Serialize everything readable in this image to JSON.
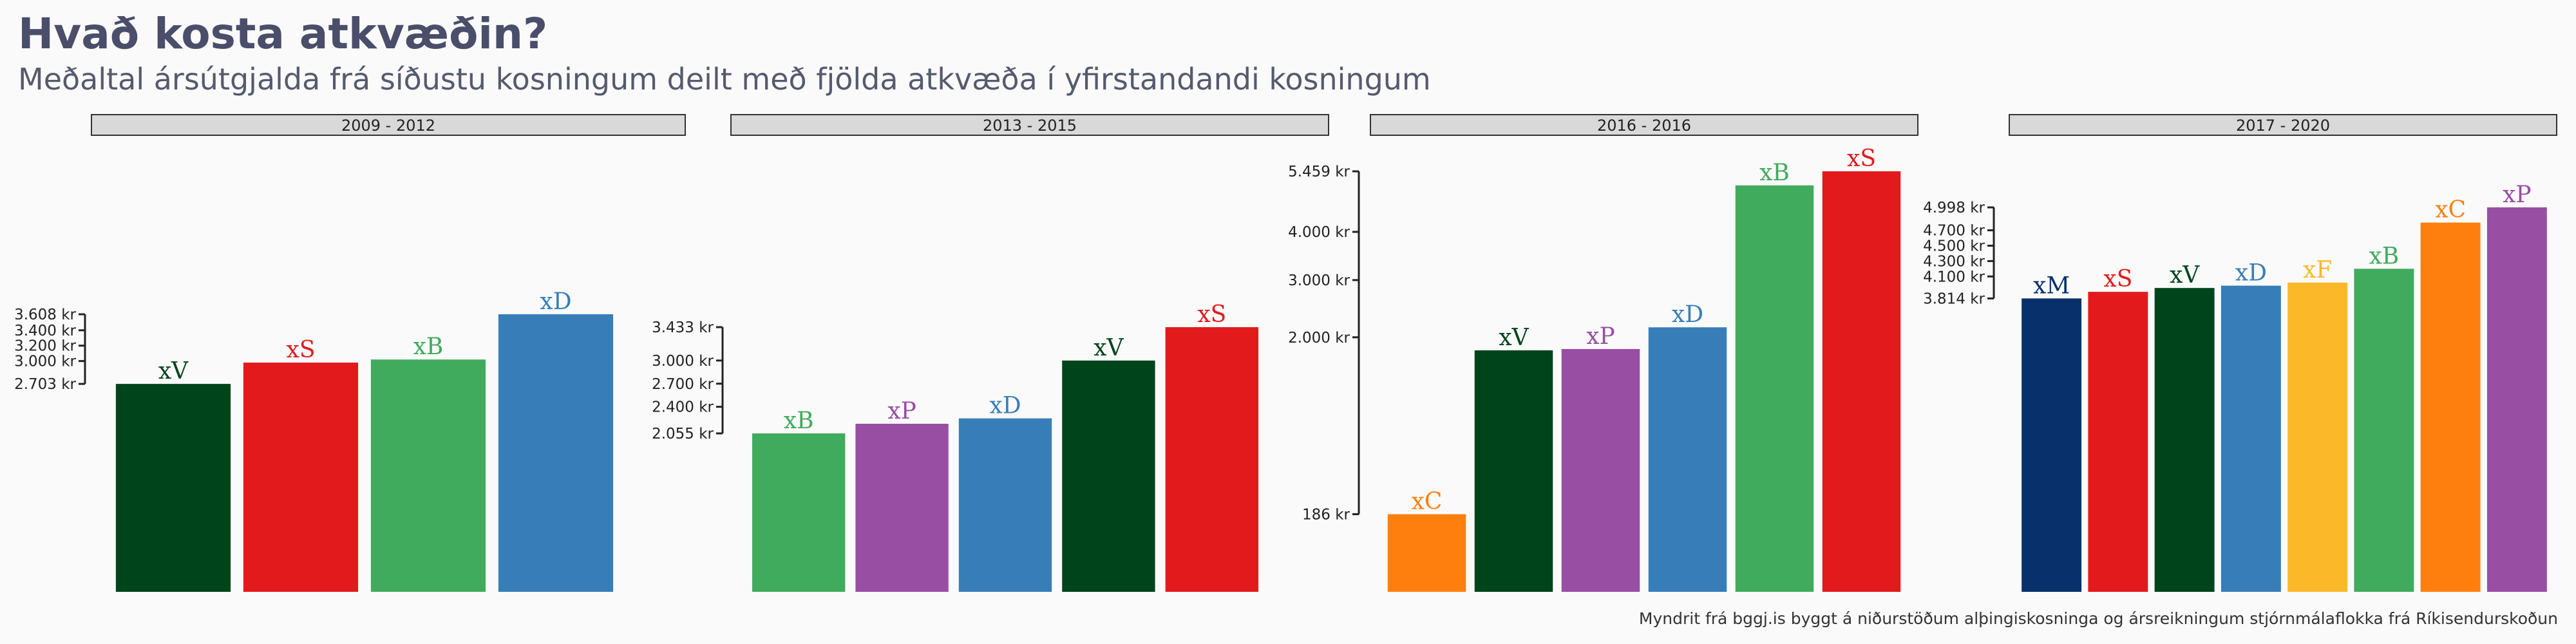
{
  "title": "Hvað kosta atkvæðin?",
  "subtitle": "Meðaltal ársútgjalda frá síðustu kosningum deilt með fjölda atkvæða í yfirstandandi kosningum",
  "caption": "Myndrit frá bggj.is byggt á niðurstöðum alþingiskosninga og ársreikningum stjórnmálaflokka frá Ríkisendurskoðun",
  "chart_data": [
    {
      "type": "bar",
      "panel_title": "2009 - 2012",
      "categories": [
        "xV",
        "xS",
        "xB",
        "xD"
      ],
      "values": [
        2703,
        2980,
        3020,
        3608
      ],
      "colors": [
        "#00441b",
        "#e31a1c",
        "#41ab5d",
        "#377eb8"
      ],
      "yticks": [
        "2.703 kr",
        "3.000 kr",
        "3.200 kr",
        "3.400 kr",
        "3.608 kr"
      ],
      "ytick_values": [
        2703,
        3000,
        3200,
        3400,
        3608
      ]
    },
    {
      "type": "bar",
      "panel_title": "2013 - 2015",
      "categories": [
        "xB",
        "xP",
        "xD",
        "xV",
        "xS"
      ],
      "values": [
        2055,
        2180,
        2250,
        3000,
        3433
      ],
      "colors": [
        "#41ab5d",
        "#984ea3",
        "#377eb8",
        "#00441b",
        "#e31a1c"
      ],
      "yticks": [
        "2.055 kr",
        "2.400 kr",
        "2.700 kr",
        "3.000 kr",
        "3.433 kr"
      ],
      "ytick_values": [
        2055,
        2400,
        2700,
        3000,
        3433
      ]
    },
    {
      "type": "bar",
      "panel_title": "2016 - 2016",
      "categories": [
        "xC",
        "xV",
        "xP",
        "xD",
        "xB",
        "xS"
      ],
      "values": [
        186,
        1800,
        1820,
        2160,
        5100,
        5459
      ],
      "colors": [
        "#ff7f0e",
        "#00441b",
        "#984ea3",
        "#377eb8",
        "#41ab5d",
        "#e31a1c"
      ],
      "yticks": [
        "186 kr",
        "2.000 kr",
        "3.000 kr",
        "4.000 kr",
        "5.459 kr"
      ],
      "ytick_values": [
        186,
        2000,
        3000,
        4000,
        5459
      ],
      "scale": "sqrt"
    },
    {
      "type": "bar",
      "panel_title": "2017 - 2020",
      "categories": [
        "xM",
        "xS",
        "xV",
        "xD",
        "xF",
        "xB",
        "xC",
        "xP"
      ],
      "values": [
        3814,
        3900,
        3950,
        3980,
        4020,
        4200,
        4800,
        4998
      ],
      "colors": [
        "#08306b",
        "#e31a1c",
        "#00441b",
        "#377eb8",
        "#fbb829",
        "#41ab5d",
        "#ff7f0e",
        "#984ea3"
      ],
      "yticks": [
        "3.814 kr",
        "4.100 kr",
        "4.300 kr",
        "4.500 kr",
        "4.700 kr",
        "4.998 kr"
      ],
      "ytick_values": [
        3814,
        4100,
        4300,
        4500,
        4700,
        4998
      ]
    }
  ]
}
